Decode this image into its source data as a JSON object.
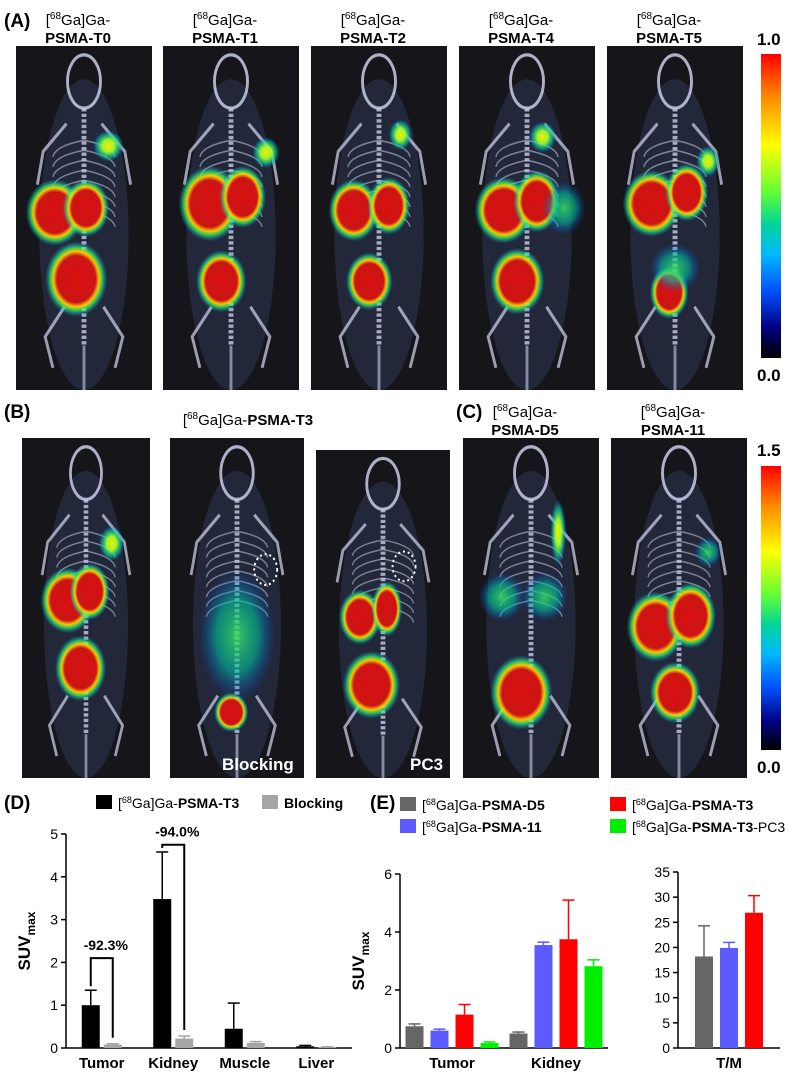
{
  "panel_a": {
    "label": "(A)",
    "tracers": [
      {
        "prefix": "[",
        "iso": "68",
        "suffix": "Ga]Ga-",
        "name": "PSMA-T0"
      },
      {
        "prefix": "[",
        "iso": "68",
        "suffix": "Ga]Ga-",
        "name": "PSMA-T1"
      },
      {
        "prefix": "[",
        "iso": "68",
        "suffix": "Ga]Ga-",
        "name": "PSMA-T2"
      },
      {
        "prefix": "[",
        "iso": "68",
        "suffix": "Ga]Ga-",
        "name": "PSMA-T4"
      },
      {
        "prefix": "[",
        "iso": "68",
        "suffix": "Ga]Ga-",
        "name": "PSMA-T5"
      }
    ],
    "scale_max": "1.0",
    "scale_min": "0.0"
  },
  "panel_b": {
    "label": "(B)",
    "title_prefix": "[",
    "title_iso": "68",
    "title_suffix": "Ga]Ga-",
    "title_name": "PSMA-T3",
    "image_labels": [
      "Blocking",
      "PC3"
    ]
  },
  "panel_c": {
    "label": "(C)",
    "tracers": [
      {
        "prefix": "[",
        "iso": "68",
        "suffix": "Ga]Ga-",
        "name": "PSMA-D5"
      },
      {
        "prefix": "[",
        "iso": "68",
        "suffix": "Ga]Ga-",
        "name": "PSMA-11"
      }
    ],
    "scale_max": "1.5",
    "scale_min": "0.0"
  },
  "colors": {
    "black_series": "#000000",
    "blocking_series": "#a6a6a6",
    "d5": "#666666",
    "psma11": "#5b5bff",
    "t3": "#ff0000",
    "t3_pc3": "#00ee00"
  },
  "chart_data": [
    {
      "id": "D",
      "type": "bar",
      "panel_label": "(D)",
      "categories": [
        "Tumor",
        "Kidney",
        "Muscle",
        "Liver"
      ],
      "series": [
        {
          "name": "[68Ga]Ga-PSMA-T3",
          "legend_prefix": "[",
          "legend_iso": "68",
          "legend_suffix": "Ga]Ga-",
          "legend_name": "PSMA-T3",
          "values": [
            1.0,
            3.48,
            0.45,
            0.04
          ],
          "errors": [
            0.35,
            1.1,
            0.6,
            0.02
          ],
          "color": "#000000"
        },
        {
          "name": "Blocking",
          "values": [
            0.08,
            0.22,
            0.12,
            0.02
          ],
          "errors": [
            0.02,
            0.06,
            0.03,
            0.01
          ],
          "color": "#a6a6a6"
        }
      ],
      "ylabel": "SUV",
      "ylabel_sub": "max",
      "ylim": [
        0,
        5
      ],
      "yticks": [
        "0",
        "1",
        "2",
        "3",
        "4",
        "5"
      ],
      "annotations": [
        "-92.3%",
        "-94.0%"
      ]
    },
    {
      "id": "E1",
      "type": "bar",
      "panel_label": "(E)",
      "categories": [
        "Tumor",
        "Kidney"
      ],
      "series": [
        {
          "name": "[68Ga]Ga-PSMA-D5",
          "legend_prefix": "[",
          "legend_iso": "68",
          "legend_suffix": "Ga]Ga-",
          "legend_name": "PSMA-D5",
          "legend_tail": "",
          "values": [
            0.75,
            0.5
          ],
          "errors": [
            0.08,
            0.05
          ],
          "color": "#666666"
        },
        {
          "name": "[68Ga]Ga-PSMA-11",
          "legend_prefix": "[",
          "legend_iso": "68",
          "legend_suffix": "Ga]Ga-",
          "legend_name": "PSMA-11",
          "legend_tail": "",
          "values": [
            0.6,
            3.55
          ],
          "errors": [
            0.05,
            0.1
          ],
          "color": "#5b5bff"
        },
        {
          "name": "[68Ga]Ga-PSMA-T3",
          "legend_prefix": "[",
          "legend_iso": "68",
          "legend_suffix": "Ga]Ga-",
          "legend_name": "PSMA-T3",
          "legend_tail": "",
          "values": [
            1.15,
            3.75
          ],
          "errors": [
            0.35,
            1.35
          ],
          "color": "#ff0000"
        },
        {
          "name": "[68Ga]Ga-PSMA-T3-PC3",
          "legend_prefix": "[",
          "legend_iso": "68",
          "legend_suffix": "Ga]Ga-",
          "legend_name": "PSMA-T3",
          "legend_tail": "-PC3",
          "values": [
            0.17,
            2.82
          ],
          "errors": [
            0.04,
            0.22
          ],
          "color": "#00ee00"
        }
      ],
      "ylabel": "SUV",
      "ylabel_sub": "max",
      "ylim": [
        0,
        6
      ],
      "yticks": [
        "0",
        "2",
        "4",
        "6"
      ]
    },
    {
      "id": "E2",
      "type": "bar",
      "categories": [
        "T/M"
      ],
      "series": [
        {
          "name": "[68Ga]Ga-PSMA-D5",
          "values": [
            18.2
          ],
          "errors": [
            6.1
          ],
          "color": "#666666"
        },
        {
          "name": "[68Ga]Ga-PSMA-11",
          "values": [
            19.9
          ],
          "errors": [
            1.1
          ],
          "color": "#5b5bff"
        },
        {
          "name": "[68Ga]Ga-PSMA-T3",
          "values": [
            26.9
          ],
          "errors": [
            3.4
          ],
          "color": "#ff0000"
        }
      ],
      "ylim": [
        0,
        35
      ],
      "yticks": [
        "0",
        "5",
        "10",
        "15",
        "20",
        "25",
        "30",
        "35"
      ]
    }
  ]
}
